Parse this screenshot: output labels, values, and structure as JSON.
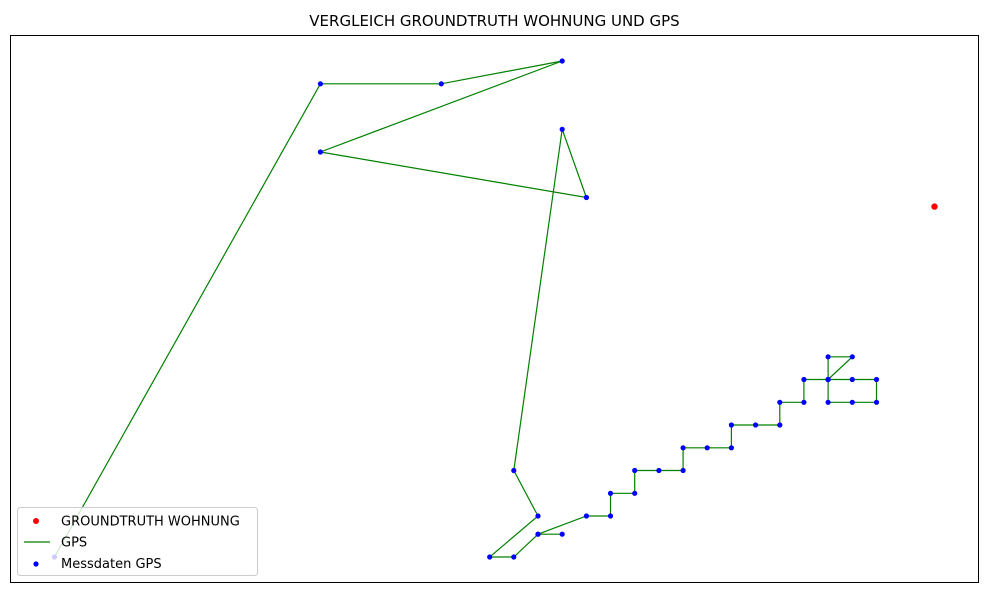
{
  "chart_data": {
    "type": "scatter",
    "title": "VERGLEICH GROUNDTRUTH WOHNUNG UND GPS",
    "xlabel": "",
    "ylabel": "",
    "axes_ticks_visible": false,
    "grid": false,
    "xlim": [
      0,
      40
    ],
    "ylim": [
      0,
      24
    ],
    "legend_position": "lower-left",
    "series": [
      {
        "name": "GROUNDTRUTH WOHNUNG",
        "kind": "scatter",
        "color": "#ff0000",
        "points": [
          [
            38.2,
            16.5
          ]
        ]
      },
      {
        "name": "GPS",
        "kind": "line",
        "color": "#008000",
        "points_ref": "Messdaten GPS"
      },
      {
        "name": "Messdaten GPS",
        "kind": "scatter",
        "color": "#0000ff",
        "points": [
          [
            1.8,
            1.1
          ],
          [
            12.8,
            21.9
          ],
          [
            17.8,
            21.9
          ],
          [
            22.8,
            22.9
          ],
          [
            12.8,
            18.9
          ],
          [
            23.8,
            16.9
          ],
          [
            22.8,
            19.9
          ],
          [
            20.8,
            4.9
          ],
          [
            21.8,
            2.9
          ],
          [
            19.8,
            1.1
          ],
          [
            20.8,
            1.1
          ],
          [
            21.8,
            2.1
          ],
          [
            22.8,
            2.1
          ],
          [
            21.8,
            2.1
          ],
          [
            23.8,
            2.9
          ],
          [
            24.8,
            2.9
          ],
          [
            24.8,
            3.9
          ],
          [
            25.8,
            3.9
          ],
          [
            25.8,
            4.9
          ],
          [
            26.8,
            4.9
          ],
          [
            27.8,
            4.9
          ],
          [
            27.8,
            5.9
          ],
          [
            28.8,
            5.9
          ],
          [
            29.8,
            5.9
          ],
          [
            29.8,
            6.9
          ],
          [
            30.8,
            6.9
          ],
          [
            31.8,
            6.9
          ],
          [
            31.8,
            7.9
          ],
          [
            32.8,
            7.9
          ],
          [
            32.8,
            8.9
          ],
          [
            33.8,
            8.9
          ],
          [
            34.8,
            9.9
          ],
          [
            33.8,
            9.9
          ],
          [
            33.8,
            8.9
          ],
          [
            33.8,
            7.9
          ],
          [
            34.8,
            7.9
          ],
          [
            35.8,
            7.9
          ],
          [
            35.8,
            8.9
          ],
          [
            34.8,
            8.9
          ],
          [
            33.8,
            8.9
          ]
        ]
      }
    ]
  }
}
